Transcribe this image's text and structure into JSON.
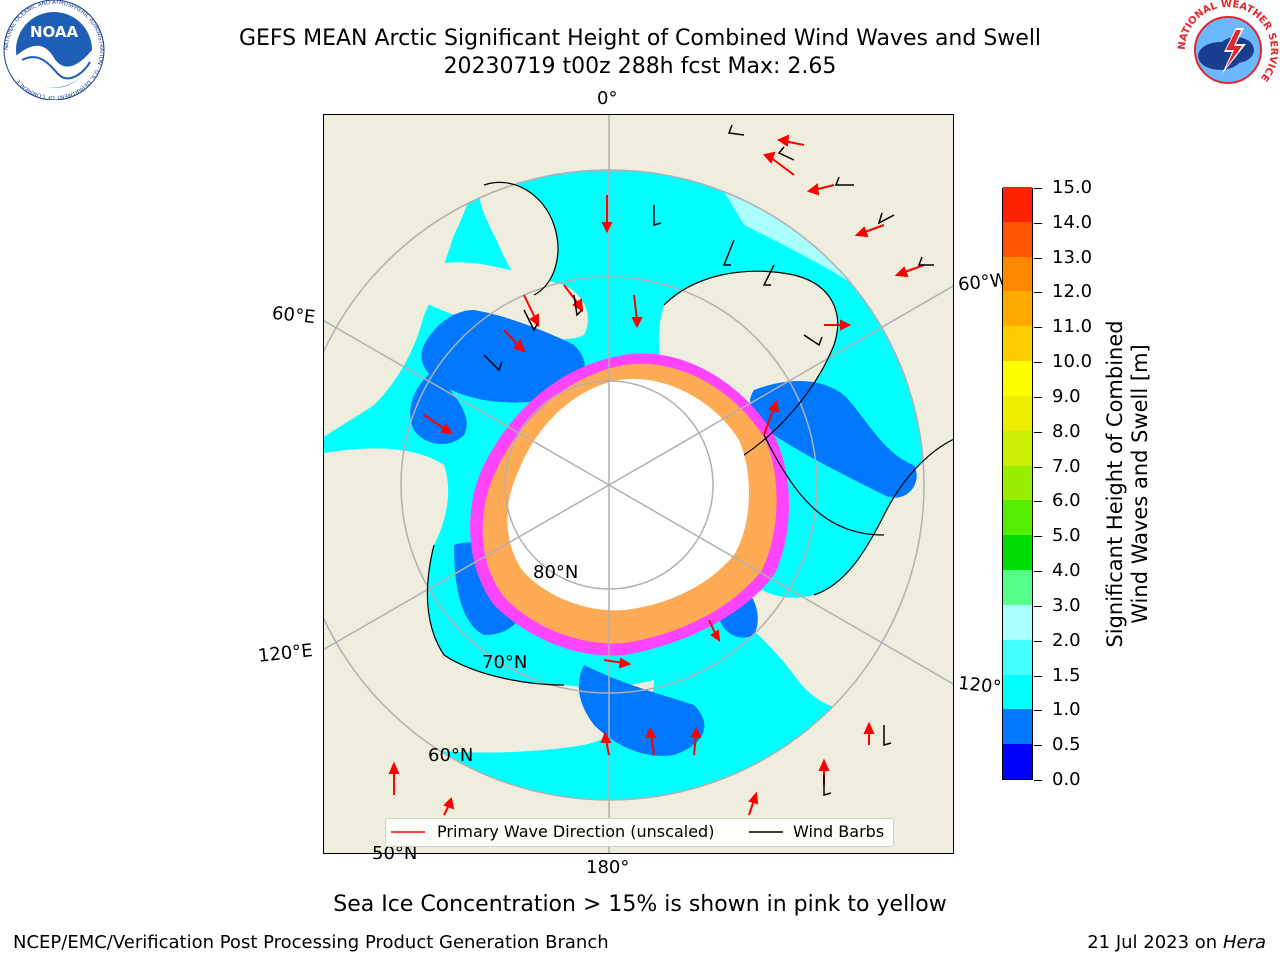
{
  "title": {
    "line1": "GEFS MEAN Arctic Significant Height of Combined Wind Waves and Swell",
    "line2": "20230719 t00z 288h fcst   Max: 2.65"
  },
  "logos": {
    "left_text": "NOAA",
    "left_ring": "NATIONAL OCEANIC AND ATMOSPHERIC ADMINISTRATION · U.S. DEPARTMENT OF COMMERCE",
    "right_ring": "NATIONAL WEATHER SERVICE"
  },
  "map": {
    "projection": "north-polar-stereographic",
    "longitude_labels": [
      "0°",
      "60°W",
      "120°W",
      "180°",
      "120°E",
      "60°E"
    ],
    "latitude_labels": [
      "80°N",
      "70°N",
      "60°N",
      "50°N"
    ],
    "colors": {
      "land": "#efedde",
      "ocean_low": "#0077ff",
      "ocean_mid": "#00ffff",
      "ocean_high": "#aaffff",
      "ice_pink": "#ff44ff",
      "ice_orange": "#ffaa55",
      "ice_white": "#ffffff"
    }
  },
  "colorbar": {
    "label": "Significant Height of Combined\nWind Waves and Swell [m]",
    "ticks": [
      "0.0",
      "0.5",
      "1.0",
      "1.5",
      "2.0",
      "3.0",
      "4.0",
      "5.0",
      "6.0",
      "7.0",
      "8.0",
      "9.0",
      "10.0",
      "11.0",
      "12.0",
      "13.0",
      "14.0",
      "15.0"
    ],
    "colors": [
      "#0000ff",
      "#0077ff",
      "#00ffff",
      "#44ffff",
      "#aaffff",
      "#55ff88",
      "#00dd00",
      "#55ee00",
      "#99ee00",
      "#ccee00",
      "#eeee00",
      "#ffff00",
      "#ffcc00",
      "#ffaa00",
      "#ff8800",
      "#ff5500",
      "#ff2200"
    ]
  },
  "legend": {
    "primary_wave": "Primary Wave Direction (unscaled)",
    "wind_barbs": "Wind Barbs",
    "primary_color": "#ff0000",
    "barb_color": "#000000"
  },
  "caption": "Sea Ice Concentration > 15% is shown in pink to yellow",
  "footer": {
    "left": "NCEP/EMC/Verification Post Processing Product Generation Branch",
    "right_prefix": "21 Jul 2023 on ",
    "right_host": "Hera"
  }
}
